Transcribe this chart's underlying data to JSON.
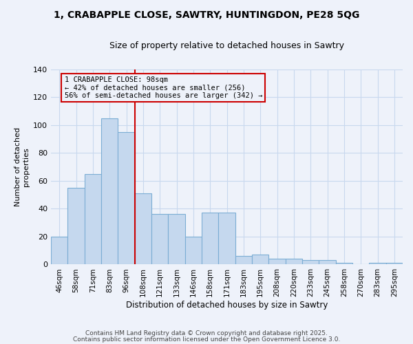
{
  "title": "1, CRABAPPLE CLOSE, SAWTRY, HUNTINGDON, PE28 5QG",
  "subtitle": "Size of property relative to detached houses in Sawtry",
  "xlabel": "Distribution of detached houses by size in Sawtry",
  "ylabel": "Number of detached\nproperties",
  "bar_color": "#c5d8ee",
  "bar_edge_color": "#7badd4",
  "grid_color": "#c8d8ee",
  "background_color": "#eef2fa",
  "annotation_box_color": "#cc0000",
  "annotation_text": "1 CRABAPPLE CLOSE: 98sqm\n← 42% of detached houses are smaller (256)\n56% of semi-detached houses are larger (342) →",
  "vline_color": "#cc0000",
  "categories": [
    "46sqm",
    "58sqm",
    "71sqm",
    "83sqm",
    "96sqm",
    "108sqm",
    "121sqm",
    "133sqm",
    "146sqm",
    "158sqm",
    "171sqm",
    "183sqm",
    "195sqm",
    "208sqm",
    "220sqm",
    "233sqm",
    "245sqm",
    "258sqm",
    "270sqm",
    "283sqm",
    "295sqm"
  ],
  "values": [
    20,
    55,
    65,
    105,
    95,
    51,
    36,
    36,
    20,
    37,
    37,
    6,
    7,
    4,
    4,
    3,
    3,
    1,
    0,
    1,
    1
  ],
  "ylim": [
    0,
    140
  ],
  "yticks": [
    0,
    20,
    40,
    60,
    80,
    100,
    120,
    140
  ],
  "footer_text1": "Contains HM Land Registry data © Crown copyright and database right 2025.",
  "footer_text2": "Contains public sector information licensed under the Open Government Licence 3.0.",
  "figsize": [
    6.0,
    5.0
  ],
  "dpi": 100
}
